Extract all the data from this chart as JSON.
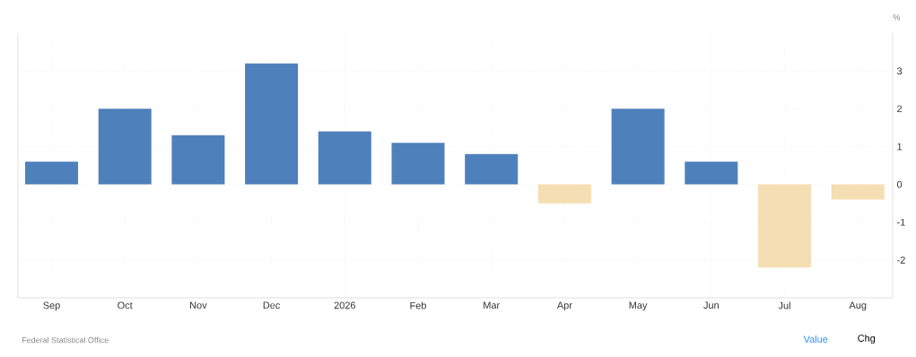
{
  "chart_data": {
    "type": "bar",
    "ylabel": "%",
    "categories": [
      "Sep",
      "Oct",
      "Nov",
      "Dec",
      "2026",
      "Feb",
      "Mar",
      "Apr",
      "May",
      "Jun",
      "Jul",
      "Aug"
    ],
    "values": [
      0.6,
      2.0,
      1.3,
      3.2,
      1.4,
      1.1,
      0.8,
      -0.5,
      2.0,
      0.6,
      -2.2,
      -0.4
    ],
    "colors": [
      "#4e80bc",
      "#4e80bc",
      "#4e80bc",
      "#4e80bc",
      "#4e80bc",
      "#4e80bc",
      "#4e80bc",
      "#f5deb3",
      "#4e80bc",
      "#4e80bc",
      "#f5deb3",
      "#f5deb3"
    ],
    "ylim": [
      -3,
      4
    ],
    "yticks": [
      -2,
      -1,
      0,
      1,
      2,
      3
    ],
    "grid": true,
    "annotations": [
      "Federal Statistical Office",
      "Value",
      "Chg"
    ]
  }
}
